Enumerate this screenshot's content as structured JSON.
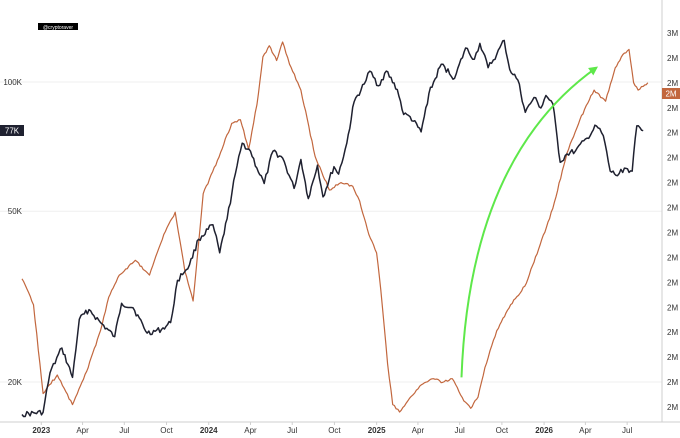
{
  "watermark": "@cryptoraver",
  "chart_data": {
    "type": "line",
    "title": "",
    "left_axis": {
      "scale": "log",
      "tick_labels": [
        "100K",
        "50K",
        "20K"
      ],
      "tick_values": [
        100000,
        50000,
        20000
      ],
      "current_value_label": "77K",
      "current_value": 77000,
      "ylim": [
        17000,
        140000
      ]
    },
    "right_axis": {
      "tick_labels": [
        "3M",
        "2M",
        "2M",
        "2M",
        "2M",
        "2M",
        "2M",
        "2M",
        "2M",
        "2M",
        "2M",
        "2M",
        "2M",
        "2M",
        "2M",
        "2M"
      ],
      "current_value_label": "2M"
    },
    "x_ticks": [
      {
        "label": "2023",
        "date": "2023-01-01",
        "bold": true
      },
      {
        "label": "Apr",
        "date": "2023-04-01",
        "bold": false
      },
      {
        "label": "Jul",
        "date": "2023-07-01",
        "bold": false
      },
      {
        "label": "Oct",
        "date": "2023-10-01",
        "bold": false
      },
      {
        "label": "2024",
        "date": "2024-01-01",
        "bold": true
      },
      {
        "label": "Apr",
        "date": "2024-04-01",
        "bold": false
      },
      {
        "label": "Jul",
        "date": "2024-07-01",
        "bold": false
      },
      {
        "label": "Oct",
        "date": "2024-10-01",
        "bold": false
      },
      {
        "label": "2025",
        "date": "2025-01-01",
        "bold": true
      },
      {
        "label": "Apr",
        "date": "2025-04-01",
        "bold": false
      },
      {
        "label": "Jul",
        "date": "2025-07-01",
        "bold": false
      },
      {
        "label": "Oct",
        "date": "2025-10-01",
        "bold": false
      },
      {
        "label": "2026",
        "date": "2026-01-01",
        "bold": true
      },
      {
        "label": "Apr",
        "date": "2026-04-01",
        "bold": false
      },
      {
        "label": "Jul",
        "date": "2026-07-01",
        "bold": false
      }
    ],
    "xlim": [
      "2022-11-20",
      "2026-09-15"
    ],
    "grid": true,
    "series": [
      {
        "color": "#1f2130",
        "axis": "left",
        "points": [
          [
            "2022-11-20",
            16800
          ],
          [
            "2023-01-05",
            17000
          ],
          [
            "2023-01-20",
            21000
          ],
          [
            "2023-02-15",
            24000
          ],
          [
            "2023-03-10",
            20500
          ],
          [
            "2023-03-25",
            28000
          ],
          [
            "2023-04-15",
            29500
          ],
          [
            "2023-05-10",
            27500
          ],
          [
            "2023-06-10",
            25500
          ],
          [
            "2023-06-25",
            30500
          ],
          [
            "2023-07-20",
            29800
          ],
          [
            "2023-08-20",
            26000
          ],
          [
            "2023-09-20",
            26500
          ],
          [
            "2023-10-10",
            27500
          ],
          [
            "2023-10-25",
            34500
          ],
          [
            "2023-11-20",
            37500
          ],
          [
            "2023-12-10",
            43000
          ],
          [
            "2024-01-10",
            46500
          ],
          [
            "2024-01-25",
            40000
          ],
          [
            "2024-02-10",
            48000
          ],
          [
            "2024-02-28",
            61000
          ],
          [
            "2024-03-14",
            72000
          ],
          [
            "2024-04-01",
            69000
          ],
          [
            "2024-04-15",
            63000
          ],
          [
            "2024-05-01",
            58000
          ],
          [
            "2024-05-20",
            69000
          ],
          [
            "2024-06-10",
            66500
          ],
          [
            "2024-07-05",
            56500
          ],
          [
            "2024-07-20",
            66000
          ],
          [
            "2024-08-05",
            53500
          ],
          [
            "2024-08-25",
            64000
          ],
          [
            "2024-09-06",
            54000
          ],
          [
            "2024-09-30",
            63500
          ],
          [
            "2024-10-10",
            61000
          ],
          [
            "2024-10-28",
            72000
          ],
          [
            "2024-11-13",
            90000
          ],
          [
            "2024-12-05",
            99000
          ],
          [
            "2024-12-17",
            106000
          ],
          [
            "2025-01-05",
            98000
          ],
          [
            "2025-01-22",
            106000
          ],
          [
            "2025-02-15",
            96000
          ],
          [
            "2025-03-01",
            84000
          ],
          [
            "2025-03-15",
            83000
          ],
          [
            "2025-04-08",
            76500
          ],
          [
            "2025-04-25",
            94000
          ],
          [
            "2025-05-22",
            110000
          ],
          [
            "2025-06-20",
            102000
          ],
          [
            "2025-07-14",
            120000
          ],
          [
            "2025-08-02",
            113000
          ],
          [
            "2025-08-14",
            123000
          ],
          [
            "2025-09-01",
            108000
          ],
          [
            "2025-09-20",
            116000
          ],
          [
            "2025-10-06",
            125000
          ],
          [
            "2025-10-18",
            107000
          ],
          [
            "2025-11-05",
            101000
          ],
          [
            "2025-11-21",
            85000
          ],
          [
            "2025-12-10",
            92000
          ],
          [
            "2025-12-25",
            87000
          ],
          [
            "2026-01-05",
            93000
          ],
          [
            "2026-01-20",
            89000
          ],
          [
            "2026-02-05",
            65000
          ],
          [
            "2026-02-20",
            68000
          ],
          [
            "2026-03-10",
            69000
          ],
          [
            "2026-04-05",
            74000
          ],
          [
            "2026-04-25",
            79000
          ],
          [
            "2026-05-10",
            75000
          ],
          [
            "2026-05-25",
            62000
          ],
          [
            "2026-06-10",
            60500
          ],
          [
            "2026-06-25",
            63000
          ],
          [
            "2026-07-12",
            62000
          ],
          [
            "2026-07-22",
            79000
          ],
          [
            "2026-08-05",
            77000
          ]
        ]
      },
      {
        "color": "#c2673e",
        "axis": "right",
        "points": [
          [
            "2022-11-20",
            0.36
          ],
          [
            "2022-12-15",
            0.29
          ],
          [
            "2023-01-05",
            0.05
          ],
          [
            "2023-02-05",
            0.1
          ],
          [
            "2023-03-10",
            0.02
          ],
          [
            "2023-04-10",
            0.11
          ],
          [
            "2023-05-10",
            0.22
          ],
          [
            "2023-05-28",
            0.31
          ],
          [
            "2023-06-20",
            0.37
          ],
          [
            "2023-07-25",
            0.41
          ],
          [
            "2023-08-25",
            0.37
          ],
          [
            "2023-09-25",
            0.48
          ],
          [
            "2023-10-20",
            0.54
          ],
          [
            "2023-11-10",
            0.38
          ],
          [
            "2023-11-28",
            0.3
          ],
          [
            "2023-12-20",
            0.59
          ],
          [
            "2024-01-20",
            0.68
          ],
          [
            "2024-02-20",
            0.78
          ],
          [
            "2024-03-10",
            0.79
          ],
          [
            "2024-03-28",
            0.71
          ],
          [
            "2024-04-15",
            0.83
          ],
          [
            "2024-04-28",
            0.96
          ],
          [
            "2024-05-12",
            0.99
          ],
          [
            "2024-05-28",
            0.95
          ],
          [
            "2024-06-10",
            1.0
          ],
          [
            "2024-06-25",
            0.94
          ],
          [
            "2024-07-20",
            0.87
          ],
          [
            "2024-08-20",
            0.69
          ],
          [
            "2024-09-20",
            0.6
          ],
          [
            "2024-10-15",
            0.62
          ],
          [
            "2024-11-10",
            0.61
          ],
          [
            "2024-11-25",
            0.57
          ],
          [
            "2024-12-15",
            0.48
          ],
          [
            "2025-01-01",
            0.43
          ],
          [
            "2025-01-10",
            0.33
          ],
          [
            "2025-01-25",
            0.13
          ],
          [
            "2025-02-05",
            0.02
          ],
          [
            "2025-02-20",
            0.0
          ],
          [
            "2025-03-10",
            0.03
          ],
          [
            "2025-04-05",
            0.07
          ],
          [
            "2025-05-05",
            0.09
          ],
          [
            "2025-05-25",
            0.08
          ],
          [
            "2025-06-15",
            0.09
          ],
          [
            "2025-07-10",
            0.03
          ],
          [
            "2025-07-25",
            0.01
          ],
          [
            "2025-08-10",
            0.04
          ],
          [
            "2025-08-25",
            0.12
          ],
          [
            "2025-09-20",
            0.22
          ],
          [
            "2025-10-20",
            0.29
          ],
          [
            "2025-11-20",
            0.34
          ],
          [
            "2025-12-20",
            0.44
          ],
          [
            "2026-01-20",
            0.55
          ],
          [
            "2026-02-20",
            0.7
          ],
          [
            "2026-03-20",
            0.79
          ],
          [
            "2026-04-20",
            0.87
          ],
          [
            "2026-05-15",
            0.84
          ],
          [
            "2026-06-05",
            0.93
          ],
          [
            "2026-06-25",
            0.97
          ],
          [
            "2026-07-05",
            0.98
          ],
          [
            "2026-07-15",
            0.89
          ],
          [
            "2026-07-25",
            0.87
          ],
          [
            "2026-08-05",
            0.88
          ],
          [
            "2026-08-15",
            0.89
          ]
        ]
      }
    ],
    "annotation_arrow": {
      "color": "#5ee84a",
      "from": [
        "2025-07-05",
        20500
      ],
      "to": [
        "2026-04-25",
        108000
      ]
    }
  }
}
